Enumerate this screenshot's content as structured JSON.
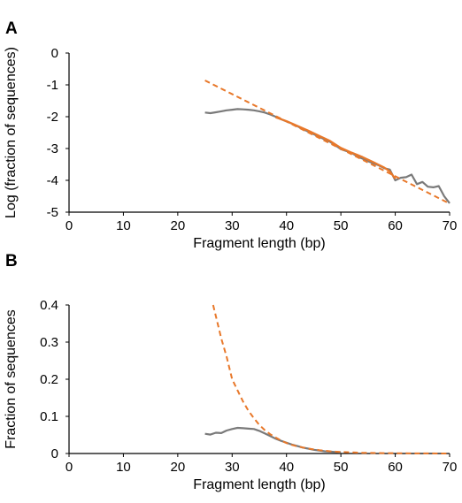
{
  "chart_data": [
    {
      "panel": "A",
      "type": "line",
      "title": "",
      "xlabel": "Fragment length (bp)",
      "ylabel": "Log (fraction of sequences)",
      "xlim": [
        0,
        70
      ],
      "ylim": [
        -5,
        0
      ],
      "xticks": [
        0,
        10,
        20,
        30,
        40,
        50,
        60,
        70
      ],
      "yticks": [
        0,
        -1,
        -2,
        -3,
        -4,
        -5
      ],
      "grid": false,
      "series": [
        {
          "color": "#7a7a7a",
          "style": "solid",
          "x": [
            25,
            26,
            27,
            28,
            29,
            30,
            31,
            32,
            33,
            34,
            35,
            36,
            37,
            38,
            39,
            40,
            41,
            42,
            43,
            44,
            45,
            46,
            47,
            48,
            49,
            50,
            51,
            52,
            53,
            54,
            55,
            56,
            57,
            58,
            59,
            60,
            61,
            62,
            63,
            64,
            65,
            66,
            67,
            68,
            69,
            70
          ],
          "values": [
            -1.87,
            -1.89,
            -1.86,
            -1.83,
            -1.8,
            -1.78,
            -1.76,
            -1.77,
            -1.78,
            -1.8,
            -1.83,
            -1.87,
            -1.93,
            -2.0,
            -2.08,
            -2.15,
            -2.22,
            -2.3,
            -2.39,
            -2.47,
            -2.55,
            -2.63,
            -2.71,
            -2.79,
            -2.9,
            -3.02,
            -3.08,
            -3.14,
            -3.25,
            -3.32,
            -3.4,
            -3.47,
            -3.53,
            -3.62,
            -3.66,
            -4.0,
            -3.92,
            -3.9,
            -3.82,
            -4.12,
            -4.05,
            -4.2,
            -4.22,
            -4.18,
            -4.5,
            -4.72
          ]
        },
        {
          "color": "#e8782a",
          "style": "solid",
          "x": [
            38,
            40,
            42,
            44,
            46,
            48,
            50,
            52,
            54,
            56,
            58,
            59,
            60
          ],
          "values": [
            -2.02,
            -2.14,
            -2.29,
            -2.44,
            -2.6,
            -2.76,
            -2.98,
            -3.13,
            -3.27,
            -3.43,
            -3.6,
            -3.72,
            -3.95
          ]
        },
        {
          "color": "#e8782a",
          "style": "dashed",
          "x": [
            25,
            70
          ],
          "values": [
            -0.86,
            -4.73
          ]
        }
      ]
    },
    {
      "panel": "B",
      "type": "line",
      "title": "",
      "xlabel": "Fragment length (bp)",
      "ylabel": "Fraction of sequences",
      "xlim": [
        0,
        70
      ],
      "ylim": [
        0,
        0.4
      ],
      "xticks": [
        0,
        10,
        20,
        30,
        40,
        50,
        60,
        70
      ],
      "yticks": [
        "0",
        "0.1",
        "0.2",
        "0.3",
        "0.4"
      ],
      "grid": false,
      "series": [
        {
          "color": "#7a7a7a",
          "style": "solid",
          "x": [
            25,
            26,
            27,
            28,
            29,
            30,
            31,
            32,
            33,
            34,
            35,
            36,
            37,
            38,
            39,
            40,
            41,
            42,
            43,
            44,
            45,
            46,
            47,
            48,
            49,
            50
          ],
          "values": [
            0.053,
            0.051,
            0.056,
            0.055,
            0.062,
            0.066,
            0.069,
            0.068,
            0.067,
            0.066,
            0.061,
            0.054,
            0.047,
            0.04,
            0.034,
            0.029,
            0.024,
            0.02,
            0.016,
            0.013,
            0.01,
            0.008,
            0.006,
            0.005,
            0.004,
            0.003
          ]
        },
        {
          "color": "#e8782a",
          "style": "dashed",
          "x": [
            26.5,
            27,
            28,
            29,
            30,
            31,
            32,
            33,
            34,
            35,
            36,
            37,
            38,
            39,
            40,
            41,
            42,
            44,
            46,
            48,
            50,
            52,
            54,
            56,
            58,
            60,
            65,
            70
          ],
          "values": [
            0.4,
            0.37,
            0.31,
            0.26,
            0.2,
            0.17,
            0.14,
            0.115,
            0.095,
            0.077,
            0.063,
            0.052,
            0.043,
            0.035,
            0.028,
            0.023,
            0.019,
            0.013,
            0.009,
            0.006,
            0.004,
            0.003,
            0.002,
            0.0015,
            0.001,
            0.0007,
            0.0003,
            0.0001
          ]
        }
      ]
    }
  ]
}
